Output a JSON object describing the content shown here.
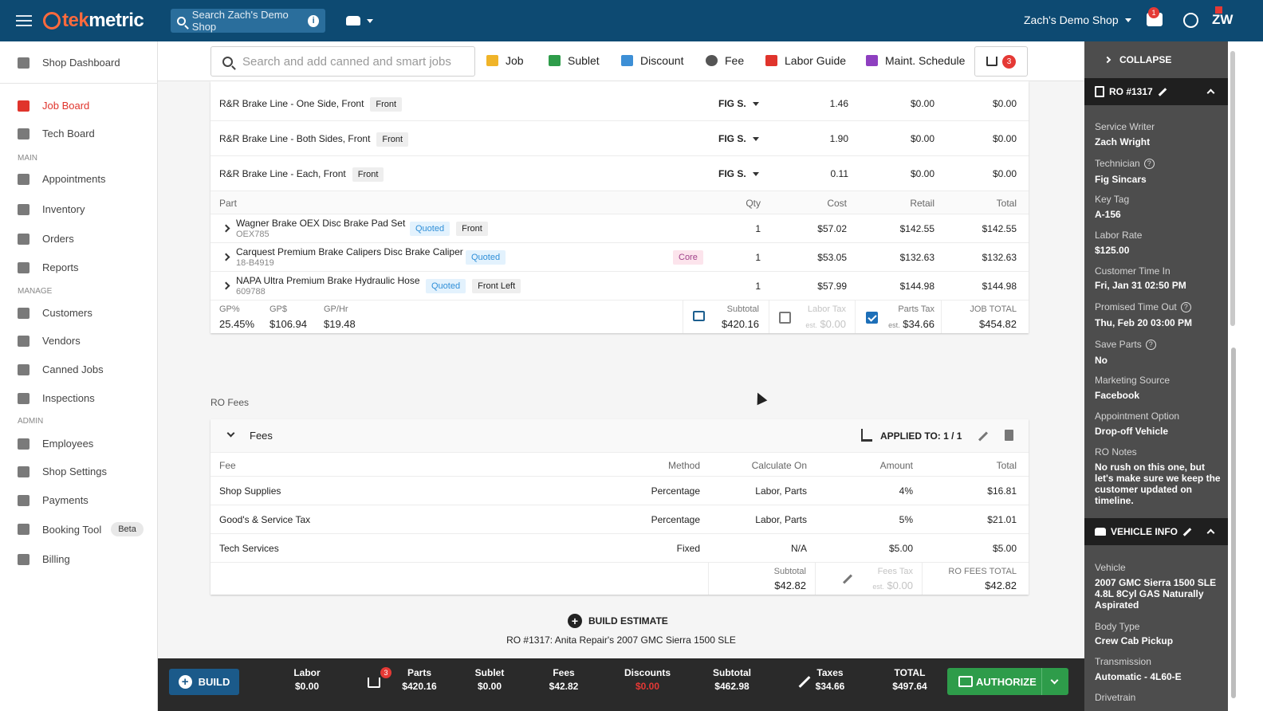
{
  "topbar": {
    "search_placeholder": "Search Zach's Demo Shop",
    "shop_name": "Zach's Demo Shop",
    "chat_badge": "1",
    "user_initials": "ZW",
    "logo_text_accent": "tek",
    "logo_text": "metric"
  },
  "sidebar": {
    "dashboard": "Shop Dashboard",
    "items_top": [
      {
        "label": "Job Board",
        "icon": "car-icon",
        "active": true
      },
      {
        "label": "Tech Board",
        "icon": "gauge-icon"
      }
    ],
    "sec_main": "MAIN",
    "items_main": [
      {
        "label": "Appointments",
        "icon": "calendar-icon"
      },
      {
        "label": "Inventory",
        "icon": "warehouse-icon"
      },
      {
        "label": "Orders",
        "icon": "list-icon"
      },
      {
        "label": "Reports",
        "icon": "bar-chart-icon"
      }
    ],
    "sec_manage": "MANAGE",
    "items_manage": [
      {
        "label": "Customers",
        "icon": "people-icon"
      },
      {
        "label": "Vendors",
        "icon": "store-icon"
      },
      {
        "label": "Canned Jobs",
        "icon": "star-icon"
      },
      {
        "label": "Inspections",
        "icon": "clipboard-icon"
      }
    ],
    "sec_admin": "ADMIN",
    "items_admin": [
      {
        "label": "Employees",
        "icon": "badge-icon"
      },
      {
        "label": "Shop Settings",
        "icon": "gear-icon"
      },
      {
        "label": "Payments",
        "icon": "payments-icon"
      },
      {
        "label": "Booking Tool",
        "icon": "booking-icon",
        "tag": "Beta"
      },
      {
        "label": "Billing",
        "icon": "card-icon"
      }
    ]
  },
  "toolbar": {
    "search_placeholder": "Search and add canned and smart jobs",
    "job": "Job",
    "sublet": "Sublet",
    "discount": "Discount",
    "fee": "Fee",
    "labor_guide": "Labor Guide",
    "maint": "Maint. Schedule",
    "cart_count": "3"
  },
  "labor_rows": [
    {
      "name": "R&R Brake Line - One Side, Front",
      "tag": "Front",
      "tech": "FIG S.",
      "hours": "1.46",
      "rate": "$0.00",
      "total": "$0.00"
    },
    {
      "name": "R&R Brake Line - Both Sides, Front",
      "tag": "Front",
      "tech": "FIG S.",
      "hours": "1.90",
      "rate": "$0.00",
      "total": "$0.00"
    },
    {
      "name": "R&R Brake Line - Each, Front",
      "tag": "Front",
      "tech": "FIG S.",
      "hours": "0.11",
      "rate": "$0.00",
      "total": "$0.00"
    }
  ],
  "parts_header": {
    "part": "Part",
    "qty": "Qty",
    "cost": "Cost",
    "retail": "Retail",
    "total": "Total"
  },
  "parts": [
    {
      "name": "Wagner Brake OEX Disc Brake Pad Set",
      "number": "OEX785",
      "status": "Quoted",
      "tag": "Front",
      "core": "",
      "qty": "1",
      "cost": "$57.02",
      "retail": "$142.55",
      "total": "$142.55"
    },
    {
      "name": "Carquest Premium Brake Calipers Disc Brake Caliper",
      "number": "18-B4919",
      "status": "Quoted",
      "tag": "",
      "core": "Core",
      "qty": "1",
      "cost": "$53.05",
      "retail": "$132.63",
      "total": "$132.63"
    },
    {
      "name": "NAPA Ultra Premium Brake Hydraulic Hose",
      "number": "609788",
      "status": "Quoted",
      "tag": "Front Left",
      "core": "",
      "qty": "1",
      "cost": "$57.99",
      "retail": "$144.98",
      "total": "$144.98"
    }
  ],
  "job_summary": {
    "gp_pct_label": "GP%",
    "gp_pct": "25.45%",
    "gp_dollar_label": "GP$",
    "gp_dollar": "$106.94",
    "gp_hr_label": "GP/Hr",
    "gp_hr": "$19.48",
    "subtotal_label": "Subtotal",
    "subtotal": "$420.16",
    "labor_tax_label": "Labor Tax",
    "labor_tax_est": "est.",
    "labor_tax": "$0.00",
    "parts_tax_label": "Parts Tax",
    "parts_tax_est": "est.",
    "parts_tax": "$34.66",
    "job_total_label": "JOB TOTAL",
    "job_total": "$454.82"
  },
  "ro_fees": {
    "section_title": "RO Fees",
    "card_title": "Fees",
    "applied_to": "APPLIED TO: 1 / 1",
    "headers": {
      "fee": "Fee",
      "method": "Method",
      "calc": "Calculate On",
      "amount": "Amount",
      "total": "Total"
    },
    "rows": [
      {
        "fee": "Shop Supplies",
        "method": "Percentage",
        "calc": "Labor, Parts",
        "amount": "4%",
        "total": "$16.81"
      },
      {
        "fee": "Good's & Service Tax",
        "method": "Percentage",
        "calc": "Labor, Parts",
        "amount": "5%",
        "total": "$21.01"
      },
      {
        "fee": "Tech Services",
        "method": "Fixed",
        "calc": "N/A",
        "amount": "$5.00",
        "total": "$5.00"
      }
    ],
    "subtotal_label": "Subtotal",
    "subtotal": "$42.82",
    "fees_tax_label": "Fees Tax",
    "fees_tax_est": "est.",
    "fees_tax": "$0.00",
    "total_label": "RO FEES TOTAL",
    "total": "$42.82"
  },
  "build_estimate": {
    "label": "BUILD ESTIMATE",
    "subtitle": "RO #1317: Anita Repair's 2007 GMC Sierra 1500 SLE"
  },
  "bottom": {
    "build": "BUILD",
    "labor_label": "Labor",
    "labor": "$0.00",
    "cart_badge": "3",
    "parts_label": "Parts",
    "parts": "$420.16",
    "sublet_label": "Sublet",
    "sublet": "$0.00",
    "fees_label": "Fees",
    "fees": "$42.82",
    "discounts_label": "Discounts",
    "discounts": "$0.00",
    "subtotal_label": "Subtotal",
    "subtotal": "$462.98",
    "taxes_label": "Taxes",
    "taxes": "$34.66",
    "total_label": "TOTAL",
    "total": "$497.64",
    "authorize": "AUTHORIZE"
  },
  "rpanel": {
    "collapse": "COLLAPSE",
    "ro_title": "RO #1317",
    "service_writer_label": "Service Writer",
    "service_writer": "Zach Wright",
    "technician_label": "Technician",
    "technician": "Fig Sincars",
    "key_tag_label": "Key Tag",
    "key_tag": "A-156",
    "labor_rate_label": "Labor Rate",
    "labor_rate": "$125.00",
    "time_in_label": "Customer Time In",
    "time_in": "Fri, Jan 31 02:50 PM",
    "promised_label": "Promised Time Out",
    "promised": "Thu, Feb 20 03:00 PM",
    "save_parts_label": "Save Parts",
    "save_parts": "No",
    "marketing_label": "Marketing Source",
    "marketing": "Facebook",
    "appt_label": "Appointment Option",
    "appt": "Drop-off Vehicle",
    "notes_label": "RO Notes",
    "notes": "No rush on this one, but let's make sure we keep the customer updated on timeline.",
    "vehicle_title": "VEHICLE INFO",
    "vehicle_label": "Vehicle",
    "vehicle": "2007 GMC Sierra 1500 SLE 4.8L 8Cyl GAS Naturally Aspirated",
    "body_label": "Body Type",
    "body": "Crew Cab Pickup",
    "trans_label": "Transmission",
    "trans": "Automatic - 4L60-E",
    "drivetrain_label": "Drivetrain"
  },
  "colors": {
    "brand": "#0d4a72",
    "accent": "#ff6a3d",
    "active": "#e0342c",
    "authorize": "#2e9c4a"
  }
}
